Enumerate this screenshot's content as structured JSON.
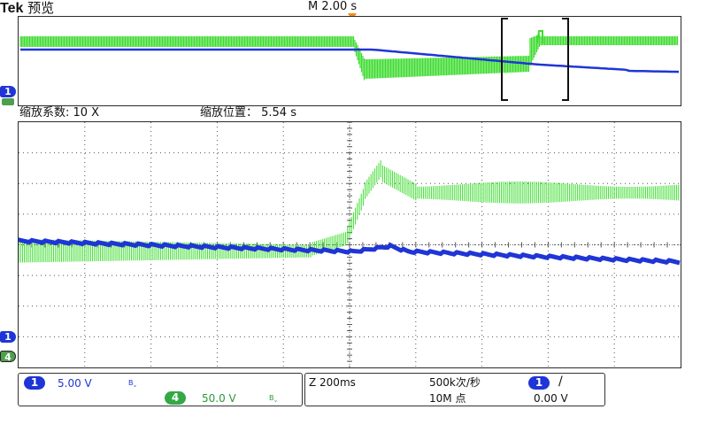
{
  "brand": {
    "logo": "Tek",
    "mode": "预览"
  },
  "timebase": {
    "label": "M 2.00 s"
  },
  "zoom": {
    "factor_label": "缩放系数: 10 X",
    "position_label": "缩放位置：  5.54 s"
  },
  "markers": {
    "ch1": "1",
    "ch4": "4"
  },
  "channels": {
    "ch1": {
      "badge": "1",
      "scale": "5.00 V",
      "bw": "Bˬ"
    },
    "ch4": {
      "badge": "4",
      "scale": "50.0 V",
      "bw": "Bˬ"
    }
  },
  "horizontal": {
    "zoom_scale": "Z 200ms",
    "sample_rate": "500k次/秒",
    "record_length": "10M 点",
    "trigger_channel": "1",
    "trigger_slope": "/",
    "trigger_level": "0.00 V"
  },
  "colors": {
    "ch1": "#1f35d6",
    "ch4": "#3ddc2f",
    "trigger": "#f28c1c",
    "grid": "#333333"
  }
}
